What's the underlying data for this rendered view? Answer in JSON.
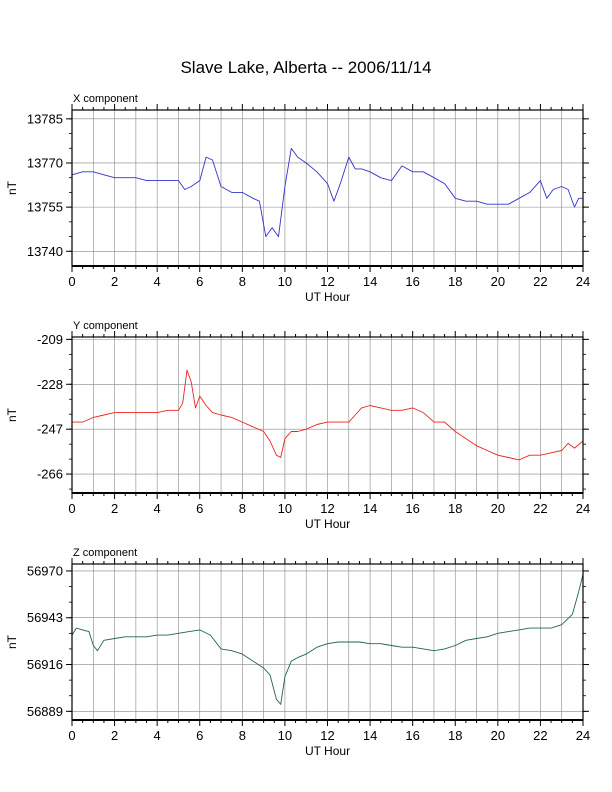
{
  "title": "Slave Lake, Alberta -- 2006/11/14",
  "chart_data": [
    {
      "type": "line",
      "panel_label": "X component",
      "xlabel": "UT Hour",
      "ylabel": "nT",
      "xlim": [
        0,
        24
      ],
      "ylim": [
        13735,
        13788
      ],
      "xticks": [
        0,
        2,
        4,
        6,
        8,
        10,
        12,
        14,
        16,
        18,
        20,
        22,
        24
      ],
      "yticks": [
        13740,
        13755,
        13770,
        13785
      ],
      "grid": true,
      "color": "#3333cc",
      "x": [
        0,
        0.5,
        1,
        1.5,
        2,
        2.5,
        3,
        3.5,
        4,
        4.5,
        5,
        5.3,
        5.6,
        6,
        6.3,
        6.6,
        7,
        7.5,
        8,
        8.5,
        8.8,
        9.1,
        9.4,
        9.7,
        10,
        10.3,
        10.6,
        11,
        11.5,
        12,
        12.3,
        12.6,
        13,
        13.3,
        13.6,
        14,
        14.5,
        15,
        15.5,
        16,
        16.5,
        17,
        17.5,
        18,
        18.5,
        19,
        19.5,
        20,
        20.5,
        21,
        21.5,
        22,
        22.3,
        22.6,
        23,
        23.3,
        23.6,
        23.8,
        24
      ],
      "y": [
        13766,
        13767,
        13767,
        13766,
        13765,
        13765,
        13765,
        13764,
        13764,
        13764,
        13764,
        13761,
        13762,
        13764,
        13772,
        13771,
        13762,
        13760,
        13760,
        13758,
        13757,
        13745,
        13748,
        13745,
        13762,
        13775,
        13772,
        13770,
        13767,
        13763,
        13757,
        13763,
        13772,
        13768,
        13768,
        13767,
        13765,
        13764,
        13769,
        13767,
        13767,
        13765,
        13763,
        13758,
        13757,
        13757,
        13756,
        13756,
        13756,
        13758,
        13760,
        13764,
        13758,
        13761,
        13762,
        13761,
        13755,
        13758,
        13758
      ]
    },
    {
      "type": "line",
      "panel_label": "Y component",
      "xlabel": "UT Hour",
      "ylabel": "nT",
      "xlim": [
        0,
        24
      ],
      "ylim": [
        -274,
        -208
      ],
      "xticks": [
        0,
        2,
        4,
        6,
        8,
        10,
        12,
        14,
        16,
        18,
        20,
        22,
        24
      ],
      "yticks": [
        -209,
        -228,
        -247,
        -266
      ],
      "grid": true,
      "color": "#ee2222",
      "x": [
        0,
        0.5,
        1,
        1.5,
        2,
        2.5,
        3,
        3.5,
        4,
        4.5,
        5,
        5.2,
        5.4,
        5.6,
        5.8,
        6,
        6.3,
        6.6,
        7,
        7.5,
        8,
        8.5,
        9,
        9.3,
        9.6,
        9.8,
        10,
        10.3,
        10.6,
        11,
        11.5,
        12,
        12.5,
        13,
        13.3,
        13.6,
        14,
        14.5,
        15,
        15.5,
        16,
        16.5,
        17,
        17.5,
        18,
        18.5,
        19,
        19.5,
        20,
        20.5,
        21,
        21.5,
        22,
        22.5,
        23,
        23.3,
        23.6,
        24
      ],
      "y": [
        -244,
        -244,
        -242,
        -241,
        -240,
        -240,
        -240,
        -240,
        -240,
        -239,
        -239,
        -236,
        -222,
        -227,
        -238,
        -233,
        -237,
        -240,
        -241,
        -242,
        -244,
        -246,
        -248,
        -252,
        -258,
        -259,
        -251,
        -248,
        -248,
        -247,
        -245,
        -244,
        -244,
        -244,
        -241,
        -238,
        -237,
        -238,
        -239,
        -239,
        -238,
        -240,
        -244,
        -244,
        -248,
        -251,
        -254,
        -256,
        -258,
        -259,
        -260,
        -258,
        -258,
        -257,
        -256,
        -253,
        -255,
        -252
      ]
    },
    {
      "type": "line",
      "panel_label": "Z component",
      "xlabel": "UT Hour",
      "ylabel": "nT",
      "xlim": [
        0,
        24
      ],
      "ylim": [
        56884,
        56974
      ],
      "xticks": [
        0,
        2,
        4,
        6,
        8,
        10,
        12,
        14,
        16,
        18,
        20,
        22,
        24
      ],
      "yticks": [
        56889,
        56916,
        56943,
        56970
      ],
      "grid": true,
      "color": "#226644",
      "x": [
        0,
        0.2,
        0.5,
        0.8,
        1,
        1.2,
        1.5,
        2,
        2.5,
        3,
        3.5,
        4,
        4.5,
        5,
        5.5,
        6,
        6.5,
        7,
        7.5,
        8,
        8.5,
        9,
        9.3,
        9.6,
        9.8,
        10,
        10.3,
        10.6,
        11,
        11.5,
        12,
        12.5,
        13,
        13.5,
        14,
        14.5,
        15,
        15.5,
        16,
        16.5,
        17,
        17.5,
        18,
        18.5,
        19,
        19.5,
        20,
        20.5,
        21,
        21.5,
        22,
        22.5,
        23,
        23.5,
        23.8,
        24
      ],
      "y": [
        56933,
        56937,
        56936,
        56935,
        56927,
        56924,
        56930,
        56931,
        56932,
        56932,
        56932,
        56933,
        56933,
        56934,
        56935,
        56936,
        56933,
        56925,
        56924,
        56922,
        56918,
        56914,
        56910,
        56896,
        56893,
        56909,
        56918,
        56920,
        56922,
        56926,
        56928,
        56929,
        56929,
        56929,
        56928,
        56928,
        56927,
        56926,
        56926,
        56925,
        56924,
        56925,
        56927,
        56930,
        56931,
        56932,
        56934,
        56935,
        56936,
        56937,
        56937,
        56937,
        56939,
        56945,
        56958,
        56968
      ]
    }
  ]
}
